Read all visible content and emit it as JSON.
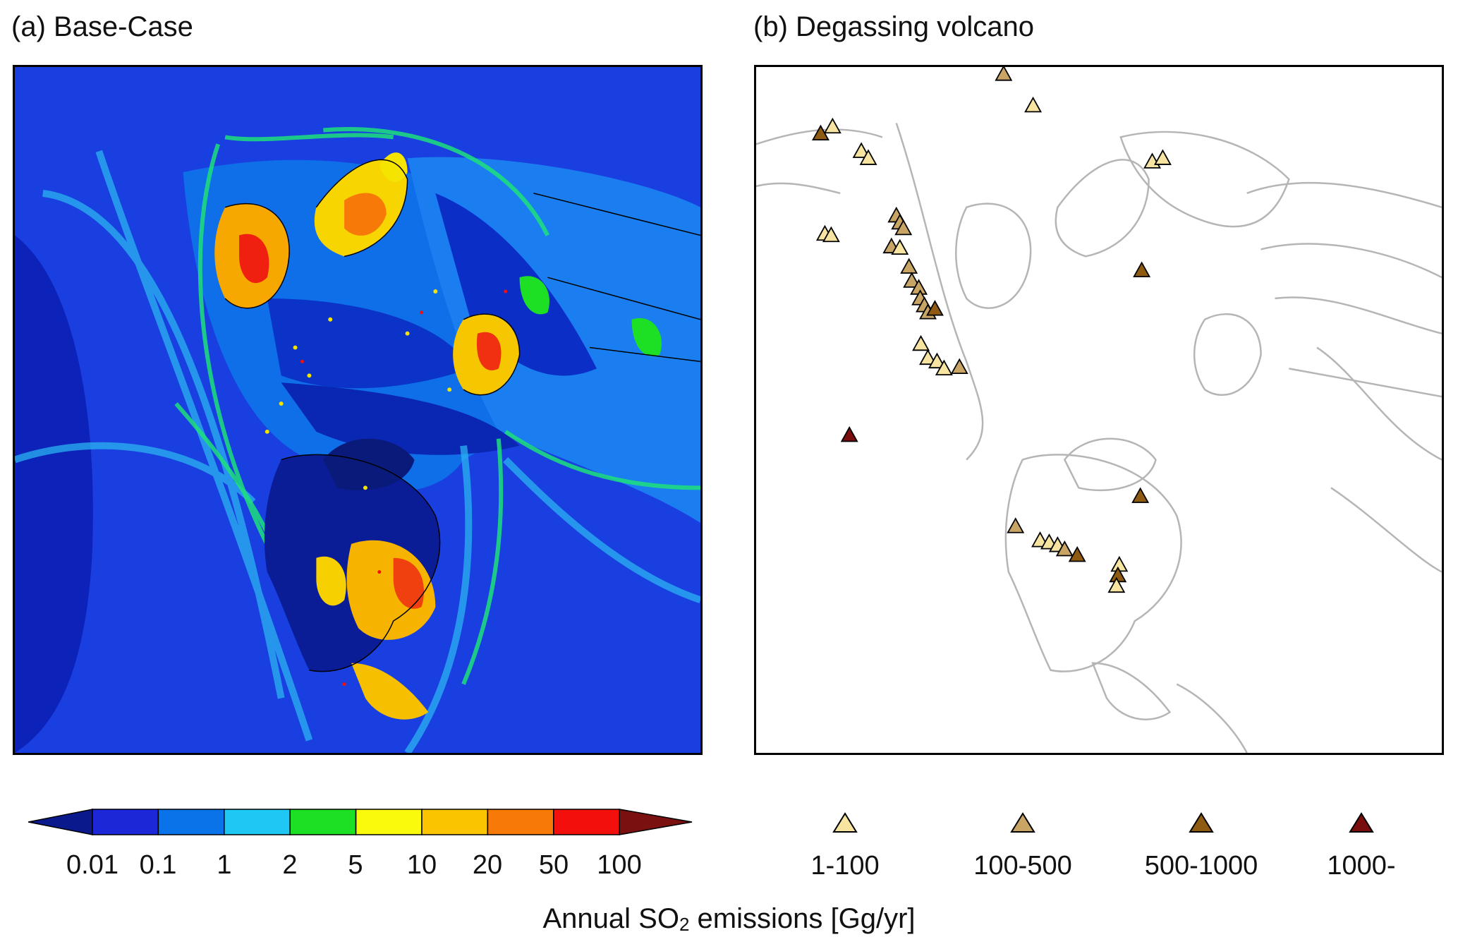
{
  "panel_a": {
    "title": "(a) Base-Case"
  },
  "panel_b": {
    "title": "(b) Degassing volcano"
  },
  "colorbar": {
    "ticks": [
      "0.01",
      "0.1",
      "1",
      "2",
      "5",
      "10",
      "20",
      "50",
      "100"
    ],
    "colors": [
      "#1c27d8",
      "#0b73ea",
      "#1fc8f4",
      "#1de024",
      "#fafa0c",
      "#fbc400",
      "#f77a08",
      "#f30f0c"
    ],
    "under_color": "#0a1a8c",
    "over_color": "#7a1010"
  },
  "legend": {
    "items": [
      {
        "label": "1-100",
        "color": "#f7e4a0"
      },
      {
        "label": "100-500",
        "color": "#c9a565"
      },
      {
        "label": "500-1000",
        "color": "#8f5b12"
      },
      {
        "label": "1000-",
        "color": "#7a0d0d"
      }
    ]
  },
  "axis_label": {
    "text": "Annual SO",
    "subscript": "2",
    "suffix": " emissions [Gg/yr]"
  },
  "volcanoes": [
    {
      "cls": 1,
      "x": 353,
      "y": 10
    },
    {
      "cls": 0,
      "x": 395,
      "y": 55
    },
    {
      "cls": 0,
      "x": 109,
      "y": 85
    },
    {
      "cls": 2,
      "x": 92,
      "y": 95
    },
    {
      "cls": 0,
      "x": 150,
      "y": 120
    },
    {
      "cls": 0,
      "x": 160,
      "y": 130
    },
    {
      "cls": 0,
      "x": 565,
      "y": 135
    },
    {
      "cls": 0,
      "x": 580,
      "y": 130
    },
    {
      "cls": 0,
      "x": 98,
      "y": 238
    },
    {
      "cls": 0,
      "x": 107,
      "y": 240
    },
    {
      "cls": 1,
      "x": 200,
      "y": 212
    },
    {
      "cls": 1,
      "x": 205,
      "y": 222
    },
    {
      "cls": 1,
      "x": 210,
      "y": 230
    },
    {
      "cls": 1,
      "x": 193,
      "y": 256
    },
    {
      "cls": 0,
      "x": 205,
      "y": 258
    },
    {
      "cls": 1,
      "x": 218,
      "y": 285
    },
    {
      "cls": 1,
      "x": 222,
      "y": 305
    },
    {
      "cls": 1,
      "x": 232,
      "y": 315
    },
    {
      "cls": 1,
      "x": 234,
      "y": 330
    },
    {
      "cls": 1,
      "x": 240,
      "y": 340
    },
    {
      "cls": 1,
      "x": 245,
      "y": 350
    },
    {
      "cls": 2,
      "x": 255,
      "y": 345
    },
    {
      "cls": 2,
      "x": 550,
      "y": 290
    },
    {
      "cls": 0,
      "x": 235,
      "y": 395
    },
    {
      "cls": 0,
      "x": 245,
      "y": 415
    },
    {
      "cls": 0,
      "x": 258,
      "y": 420
    },
    {
      "cls": 0,
      "x": 268,
      "y": 430
    },
    {
      "cls": 1,
      "x": 290,
      "y": 428
    },
    {
      "cls": 3,
      "x": 133,
      "y": 525
    },
    {
      "cls": 2,
      "x": 548,
      "y": 612
    },
    {
      "cls": 1,
      "x": 370,
      "y": 655
    },
    {
      "cls": 0,
      "x": 405,
      "y": 675
    },
    {
      "cls": 0,
      "x": 418,
      "y": 678
    },
    {
      "cls": 0,
      "x": 430,
      "y": 682
    },
    {
      "cls": 1,
      "x": 440,
      "y": 688
    },
    {
      "cls": 2,
      "x": 458,
      "y": 696
    },
    {
      "cls": 0,
      "x": 518,
      "y": 710
    },
    {
      "cls": 2,
      "x": 516,
      "y": 725
    },
    {
      "cls": 0,
      "x": 514,
      "y": 740
    }
  ]
}
